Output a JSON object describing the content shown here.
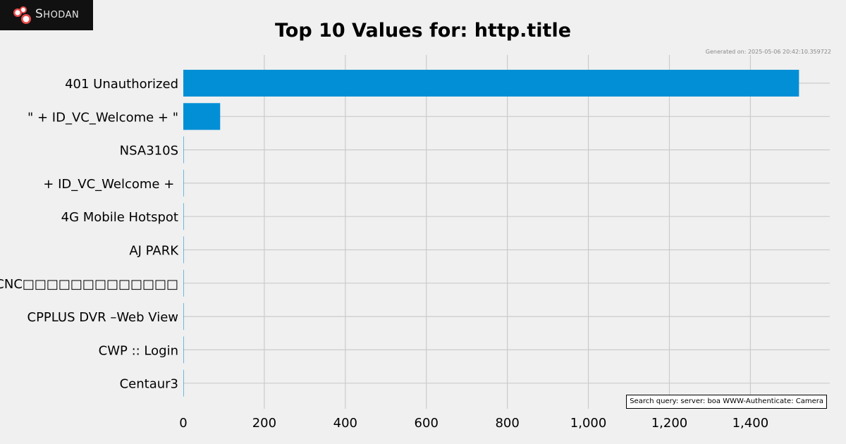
{
  "logo": {
    "text": "Shodan",
    "icon": "shodan-logo-icon"
  },
  "header": {
    "title": "Top 10 Values for: http.title",
    "generated": "Generated on: 2025-05-06 20:42:10.359722"
  },
  "footer": {
    "query": "Search query: server: boa WWW-Authenticate: Camera"
  },
  "colors": {
    "bar": "#038fd6",
    "background": "#f0f0f0",
    "grid": "#cbcbcb"
  },
  "chart_data": {
    "type": "bar",
    "orientation": "horizontal",
    "title": "Top 10 Values for: http.title",
    "xlabel": "",
    "ylabel": "",
    "categories": [
      "401 Unauthorized",
      "\" + ID_VC_Welcome + \"",
      "NSA310S",
      " + ID_VC_Welcome + ",
      "4G Mobile Hotspot",
      "AJ PARK",
      "CNC□□□□□□□□□□□□□",
      "CPPLUS DVR –Web View",
      "CWP :: Login",
      "Centaur3"
    ],
    "values": [
      1520,
      91,
      1,
      1,
      1,
      1,
      1,
      1,
      1,
      1
    ],
    "xticks": [
      0,
      200,
      400,
      600,
      800,
      1000,
      1200,
      1400
    ],
    "xtick_labels": [
      "0",
      "200",
      "400",
      "600",
      "800",
      "1,000",
      "1,200",
      "1,400"
    ],
    "xlim": [
      0,
      1596
    ],
    "grid": true
  }
}
